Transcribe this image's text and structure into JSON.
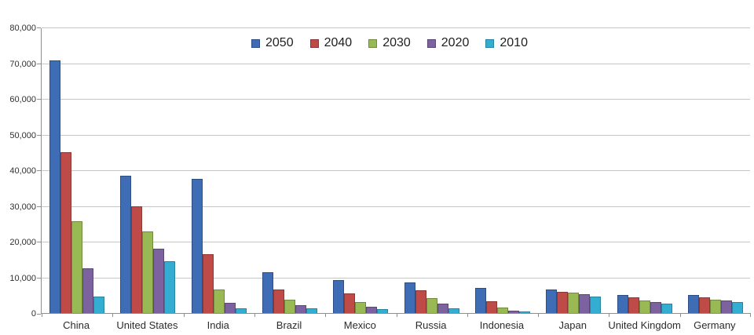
{
  "chart_data": {
    "type": "bar",
    "title": "",
    "xlabel": "",
    "ylabel": "",
    "categories": [
      "China",
      "United States",
      "India",
      "Brazil",
      "Mexico",
      "Russia",
      "Indonesia",
      "Japan",
      "United Kingdom",
      "Germany"
    ],
    "series": [
      {
        "name": "2050",
        "color": "#3e6db5",
        "border_color": "#2c4e84",
        "values": [
          70710,
          38514,
          37668,
          11366,
          9340,
          8580,
          7010,
          6677,
          5133,
          5024
        ]
      },
      {
        "name": "2040",
        "color": "#be4b48",
        "border_color": "#8b3734",
        "values": [
          45022,
          29823,
          16510,
          6631,
          5471,
          6320,
          3286,
          6042,
          4344,
          4388
        ]
      },
      {
        "name": "2030",
        "color": "#98b954",
        "border_color": "#6f8a3d",
        "values": [
          25610,
          22817,
          6683,
          3720,
          3068,
          4265,
          1479,
          5814,
          3595,
          3764
        ]
      },
      {
        "name": "2020",
        "color": "#7d62a0",
        "border_color": "#5b4775",
        "values": [
          12630,
          17978,
          2848,
          2194,
          1742,
          2554,
          752,
          5224,
          3101,
          3519
        ]
      },
      {
        "name": "2010",
        "color": "#33add1",
        "border_color": "#27849f",
        "values": [
          4667,
          14535,
          1256,
          1346,
          1009,
          1371,
          419,
          4604,
          2546,
          3083
        ]
      }
    ],
    "y_axis": {
      "min": 0,
      "max": 80000,
      "step": 10000,
      "tick_labels": [
        "0",
        "10,000",
        "20,000",
        "30,000",
        "40,000",
        "50,000",
        "60,000",
        "70,000",
        "80,000"
      ]
    },
    "legend_position": "top-center",
    "grid": true,
    "colors": {
      "gridline": "#c6c6c6",
      "axis": "#8e8e8e",
      "text": "#262626",
      "background": "#ffffff"
    }
  }
}
